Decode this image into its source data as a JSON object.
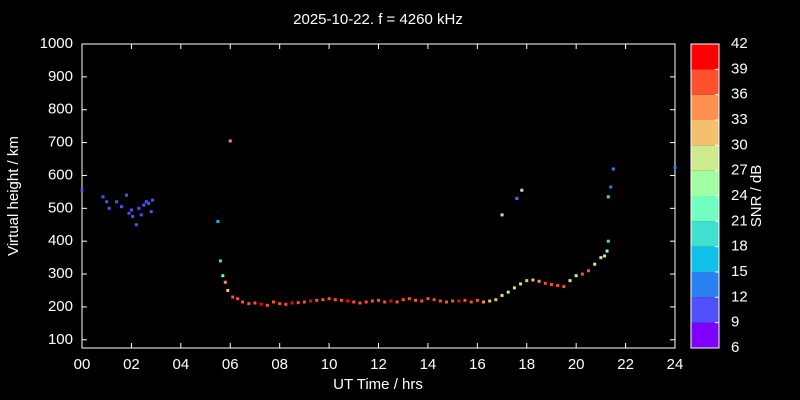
{
  "chart_data": {
    "type": "scatter",
    "title": "2025-10-22. f = 4260 kHz",
    "x_label": "UT Time / hrs",
    "y_label": "Virtual height / km",
    "xlim": [
      0,
      24
    ],
    "xticks": [
      {
        "value": 0,
        "label": "00"
      },
      {
        "value": 2,
        "label": "02"
      },
      {
        "value": 4,
        "label": "04"
      },
      {
        "value": 6,
        "label": "06"
      },
      {
        "value": 8,
        "label": "08"
      },
      {
        "value": 10,
        "label": "10"
      },
      {
        "value": 12,
        "label": "12"
      },
      {
        "value": 14,
        "label": "14"
      },
      {
        "value": 16,
        "label": "16"
      },
      {
        "value": 18,
        "label": "18"
      },
      {
        "value": 20,
        "label": "20"
      },
      {
        "value": 22,
        "label": "22"
      },
      {
        "value": 24,
        "label": "24"
      }
    ],
    "ylim": [
      75,
      1000
    ],
    "yticks": [
      100,
      200,
      300,
      400,
      500,
      600,
      700,
      800,
      900,
      1000
    ],
    "colorbar": {
      "label": "SNR / dB",
      "lim": [
        6,
        42
      ],
      "ticks": [
        6,
        9,
        12,
        15,
        18,
        21,
        24,
        27,
        30,
        33,
        36,
        39,
        42
      ],
      "colors": [
        "#8000ff",
        "#5050ff",
        "#2a80f0",
        "#10c0e8",
        "#40e0d0",
        "#70ffc0",
        "#a0ffa0",
        "#d0ea90",
        "#f4c070",
        "#ff9050",
        "#ff5030",
        "#ff0000"
      ]
    },
    "x": [
      0,
      0.85,
      1.0,
      1.1,
      1.4,
      1.6,
      1.8,
      1.9,
      2.0,
      2.05,
      2.2,
      2.3,
      2.4,
      2.5,
      2.6,
      2.7,
      2.8,
      2.85,
      5.5,
      5.6,
      5.7,
      5.8,
      5.9,
      6.0,
      6.1,
      6.3,
      6.5,
      6.75,
      7,
      7.25,
      7.5,
      7.75,
      8,
      8.25,
      8.5,
      8.75,
      9,
      9.25,
      9.5,
      9.75,
      10,
      10.25,
      10.5,
      10.75,
      11,
      11.25,
      11.5,
      11.75,
      12,
      12.25,
      12.5,
      12.75,
      13,
      13.25,
      13.5,
      13.75,
      14,
      14.25,
      14.5,
      14.75,
      15,
      15.25,
      15.5,
      15.75,
      16,
      16.25,
      16.5,
      16.75,
      17,
      17.25,
      17.5,
      17.75,
      18,
      18.25,
      18.5,
      18.75,
      19,
      19.25,
      19.5,
      19.75,
      20,
      20.25,
      20.5,
      20.75,
      21,
      21.15,
      21.25,
      17.0,
      17.6,
      17.8,
      21.3,
      21.3,
      21.4,
      21.5,
      24
    ],
    "y": [
      555,
      535,
      520,
      500,
      520,
      505,
      540,
      485,
      495,
      475,
      450,
      500,
      480,
      510,
      520,
      515,
      490,
      525,
      460,
      340,
      295,
      275,
      250,
      705,
      230,
      225,
      215,
      210,
      212,
      208,
      205,
      215,
      210,
      208,
      212,
      213,
      215,
      218,
      220,
      222,
      225,
      222,
      220,
      218,
      215,
      212,
      215,
      218,
      220,
      215,
      218,
      215,
      222,
      225,
      220,
      218,
      225,
      222,
      218,
      215,
      218,
      218,
      220,
      215,
      220,
      215,
      218,
      222,
      235,
      245,
      258,
      270,
      280,
      282,
      278,
      272,
      268,
      265,
      262,
      280,
      295,
      300,
      310,
      330,
      350,
      355,
      370,
      480,
      530,
      555,
      400,
      535,
      565,
      620,
      625
    ],
    "snr": [
      11,
      11,
      11,
      11,
      11,
      11,
      11,
      11,
      11,
      11,
      11,
      11,
      11,
      11,
      11,
      11,
      11,
      11,
      16,
      20,
      22,
      34,
      31,
      33,
      37,
      38,
      37,
      38,
      38,
      39,
      37,
      36,
      38,
      38,
      39,
      38,
      38,
      39,
      38,
      38,
      37,
      38,
      38,
      39,
      38,
      38,
      37,
      38,
      38,
      38,
      39,
      38,
      37,
      38,
      38,
      38,
      38,
      37,
      38,
      38,
      38,
      39,
      37,
      38,
      36,
      34,
      31,
      30,
      29,
      28,
      28,
      27,
      30,
      31,
      33,
      36,
      37,
      38,
      36,
      27,
      26,
      37,
      36,
      29,
      27,
      29,
      25,
      27,
      14,
      27,
      18,
      18,
      13,
      12,
      12
    ]
  }
}
